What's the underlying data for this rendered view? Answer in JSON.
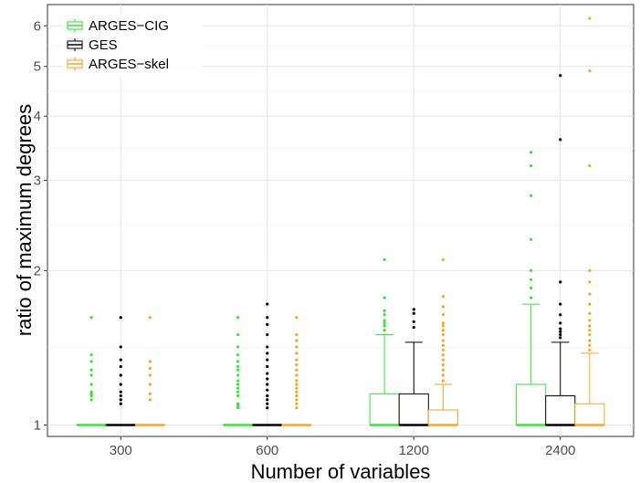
{
  "chart_data": {
    "type": "boxplot",
    "title": "",
    "xlabel": "Number of variables",
    "ylabel": "ratio of maximum degrees",
    "y_scale": "log",
    "ylim": [
      0.95,
      6.6
    ],
    "y_ticks": [
      1,
      2,
      3,
      4,
      5,
      6
    ],
    "grid": true,
    "legend_position": "top-left",
    "categories": [
      "300",
      "600",
      "1200",
      "2400"
    ],
    "series": [
      {
        "name": "ARGES−CIG",
        "color": "#33e633",
        "boxes": [
          {
            "q1": 1,
            "median": 1,
            "q3": 1,
            "whisker_low": 1,
            "whisker_high": 1,
            "outliers": [
              1.12,
              1.14,
              1.15,
              1.16,
              1.2,
              1.25,
              1.28,
              1.33,
              1.37,
              1.62
            ]
          },
          {
            "q1": 1,
            "median": 1,
            "q3": 1,
            "whisker_low": 1,
            "whisker_high": 1,
            "outliers": [
              1.08,
              1.09,
              1.1,
              1.14,
              1.16,
              1.18,
              1.2,
              1.22,
              1.25,
              1.28,
              1.3,
              1.33,
              1.37,
              1.42,
              1.5,
              1.62
            ]
          },
          {
            "q1": 1,
            "median": 1,
            "q3": 1.15,
            "whisker_low": 1,
            "whisker_high": 1.5,
            "outliers": [
              1.53,
              1.56,
              1.58,
              1.6,
              1.64,
              1.67,
              1.77,
              2.1
            ]
          },
          {
            "q1": 1,
            "median": 1,
            "q3": 1.2,
            "whisker_low": 1,
            "whisker_high": 1.72,
            "outliers": [
              1.77,
              1.85,
              1.92,
              2.0,
              2.3,
              2.8,
              3.2,
              3.4
            ]
          }
        ]
      },
      {
        "name": "GES",
        "color": "#000000",
        "boxes": [
          {
            "q1": 1,
            "median": 1,
            "q3": 1,
            "whisker_low": 1,
            "whisker_high": 1,
            "outliers": [
              1.1,
              1.12,
              1.14,
              1.16,
              1.2,
              1.25,
              1.3,
              1.34,
              1.42,
              1.62
            ]
          },
          {
            "q1": 1,
            "median": 1,
            "q3": 1,
            "whisker_low": 1,
            "whisker_high": 1,
            "outliers": [
              1.08,
              1.1,
              1.12,
              1.14,
              1.17,
              1.2,
              1.23,
              1.26,
              1.3,
              1.34,
              1.38,
              1.42,
              1.5,
              1.57,
              1.62,
              1.72
            ]
          },
          {
            "q1": 1,
            "median": 1,
            "q3": 1.15,
            "whisker_low": 1,
            "whisker_high": 1.45,
            "outliers": [
              1.55,
              1.59,
              1.65,
              1.68
            ]
          },
          {
            "q1": 1,
            "median": 1,
            "q3": 1.14,
            "whisker_low": 1,
            "whisker_high": 1.45,
            "outliers": [
              1.48,
              1.5,
              1.52,
              1.54,
              1.58,
              1.64,
              1.72,
              1.9,
              3.6,
              4.8
            ]
          }
        ]
      },
      {
        "name": "ARGES−skel",
        "color": "#f5a623",
        "boxes": [
          {
            "q1": 1,
            "median": 1,
            "q3": 1,
            "whisker_low": 1,
            "whisker_high": 1,
            "outliers": [
              1.12,
              1.15,
              1.2,
              1.25,
              1.29,
              1.33,
              1.62
            ]
          },
          {
            "q1": 1,
            "median": 1,
            "q3": 1,
            "whisker_low": 1,
            "whisker_high": 1,
            "outliers": [
              1.08,
              1.1,
              1.12,
              1.14,
              1.16,
              1.18,
              1.2,
              1.22,
              1.25,
              1.28,
              1.31,
              1.34,
              1.38,
              1.42,
              1.46,
              1.5,
              1.62
            ]
          },
          {
            "q1": 1,
            "median": 1,
            "q3": 1.07,
            "whisker_low": 1,
            "whisker_high": 1.2,
            "outliers": [
              1.22,
              1.25,
              1.28,
              1.31,
              1.34,
              1.37,
              1.4,
              1.43,
              1.46,
              1.5,
              1.53,
              1.56,
              1.58,
              1.64,
              1.7,
              1.78,
              2.1
            ]
          },
          {
            "q1": 1,
            "median": 1,
            "q3": 1.1,
            "whisker_low": 1,
            "whisker_high": 1.38,
            "outliers": [
              1.4,
              1.43,
              1.46,
              1.5,
              1.53,
              1.56,
              1.6,
              1.65,
              1.72,
              1.8,
              1.9,
              2.0,
              3.2,
              4.9,
              6.2
            ]
          }
        ]
      }
    ]
  }
}
